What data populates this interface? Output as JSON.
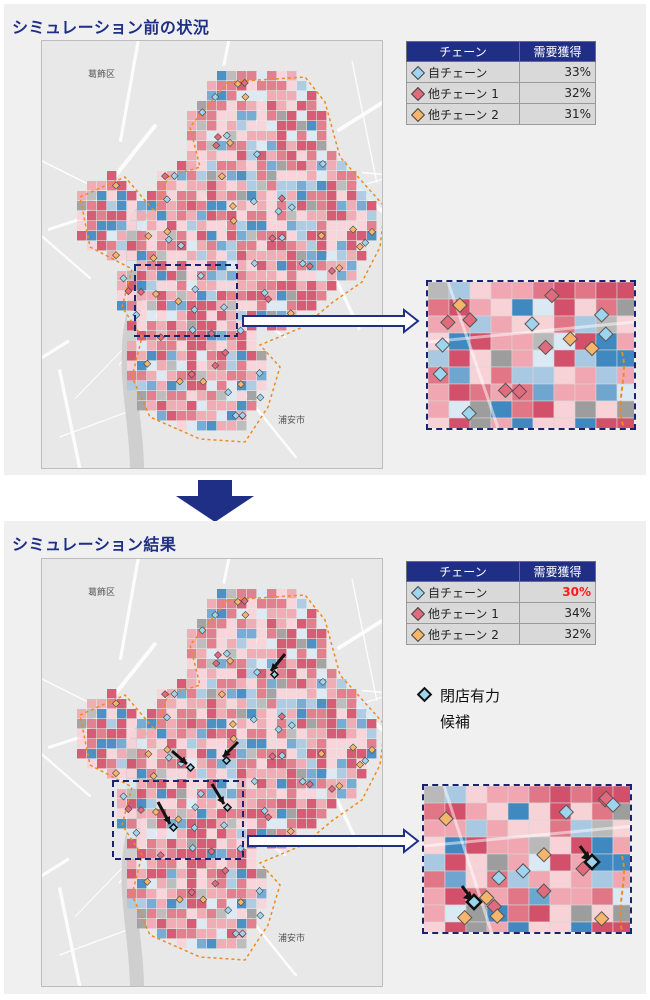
{
  "before": {
    "title": "シミュレーション前の状況",
    "legend": {
      "header_chain": "チェーン",
      "header_share": "需要獲得",
      "rows": [
        {
          "name": "自チェーン",
          "share": "33%",
          "color": "#9fd4ee"
        },
        {
          "name": "他チェーン 1",
          "share": "32%",
          "color": "#e06b7d"
        },
        {
          "name": "他チェーン 2",
          "share": "31%",
          "color": "#f5b66b"
        }
      ]
    },
    "map_labels": {
      "ward": "葛飾区",
      "city": "浦安市"
    }
  },
  "after": {
    "title": "シミュレーション結果",
    "legend": {
      "header_chain": "チェーン",
      "header_share": "需要獲得",
      "rows": [
        {
          "name": "自チェーン",
          "share": "30%",
          "color": "#9fd4ee",
          "highlight": true
        },
        {
          "name": "他チェーン 1",
          "share": "34%",
          "color": "#e06b7d"
        },
        {
          "name": "他チェーン 2",
          "share": "32%",
          "color": "#f5b66b"
        }
      ]
    },
    "note_line1": "閉店有力",
    "note_line2": "候補",
    "map_labels": {
      "ward": "葛飾区",
      "city": "浦安市"
    }
  },
  "colors": {
    "title": "#1f2f86",
    "frame": "#1b236e",
    "own_chain": "#9fd4ee",
    "other_chain_1": "#e06b7d",
    "other_chain_2": "#f5b66b",
    "highlight_text": "#ff1a1a"
  },
  "icons": [
    "diamond-marker-icon",
    "down-arrow-icon",
    "right-arrow-icon",
    "closing-candidate-icon"
  ]
}
